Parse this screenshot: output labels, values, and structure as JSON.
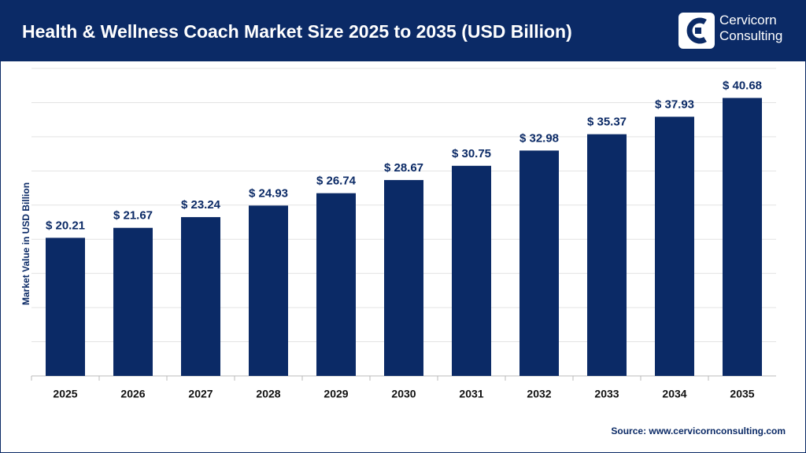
{
  "brand": "Cervicorn Consulting",
  "chart_data": {
    "type": "bar",
    "title": "Health & Wellness Coach Market Size 2025 to 2035 (USD Billion)",
    "y_label": "Market Value in USD Billion",
    "source": "Source: www.cervicornconsulting.com",
    "categories": [
      "2025",
      "2026",
      "2027",
      "2028",
      "2029",
      "2030",
      "2031",
      "2032",
      "2033",
      "2034",
      "2035"
    ],
    "values": [
      20.21,
      21.67,
      23.24,
      24.93,
      26.74,
      28.67,
      30.75,
      32.98,
      35.37,
      37.93,
      40.68
    ],
    "value_labels": [
      "$ 20.21",
      "$ 21.67",
      "$ 23.24",
      "$ 24.93",
      "$ 26.74",
      "$ 28.67",
      "$ 30.75",
      "$ 32.98",
      "$ 35.37",
      "$ 37.93",
      "$ 40.68"
    ],
    "color": "#0b2a66",
    "ylim": [
      0,
      45
    ],
    "yticks": [
      0,
      5,
      10,
      15,
      20,
      25,
      30,
      35,
      40,
      45
    ],
    "grid": true
  }
}
